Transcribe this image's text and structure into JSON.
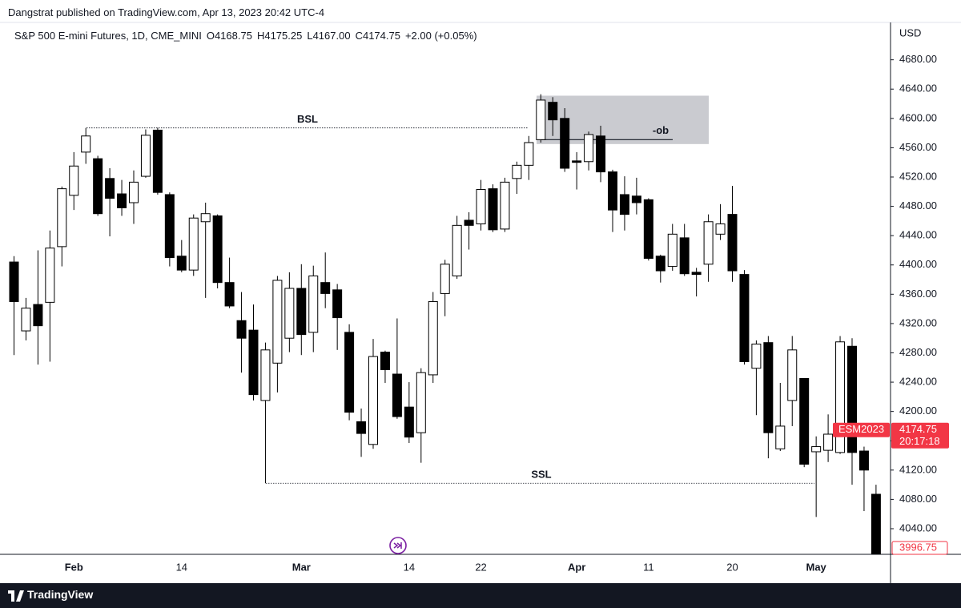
{
  "header": {
    "published": "Dangstrat published on TradingView.com, Apr 13, 2023 20:42 UTC-4"
  },
  "footer": {
    "brand": "TradingView"
  },
  "chart_data": {
    "type": "candlestick",
    "title": "S&P 500 E-mini Futures, 1D, CME_MINI",
    "ohlc_legend": [
      "O4168.75",
      "H4175.25",
      "L4167.00",
      "C4174.75",
      "+2.00 (+0.05%)"
    ],
    "currency": "USD",
    "categories": [
      null,
      null,
      null,
      null,
      null,
      "Feb",
      null,
      null,
      null,
      null,
      null,
      null,
      null,
      null,
      "14",
      null,
      null,
      null,
      null,
      null,
      null,
      null,
      null,
      null,
      "Mar",
      null,
      null,
      null,
      null,
      null,
      null,
      null,
      null,
      "14",
      null,
      null,
      null,
      null,
      null,
      "22",
      null,
      null,
      null,
      null,
      null,
      null,
      null,
      "Apr",
      null,
      null,
      null,
      null,
      null,
      "11",
      null,
      null,
      null,
      null,
      null,
      null,
      "20",
      null,
      null,
      null,
      null,
      null,
      null,
      "May",
      null,
      null,
      null,
      null,
      null
    ],
    "open": [
      4404,
      4310,
      4346,
      4349,
      4425,
      4495,
      4554,
      4545,
      4518,
      4497,
      4485,
      4521,
      4584,
      4496,
      4412,
      4393,
      4459,
      4467,
      4376,
      4324,
      4311,
      4215,
      4266,
      4300,
      4368,
      4308,
      4376,
      4366,
      4308,
      4186,
      4155,
      4281,
      4251,
      4206,
      4171,
      4250,
      4361,
      4385,
      4461,
      4456,
      4504,
      4449,
      4518,
      4536,
      4571,
      4622,
      4600,
      4542,
      4541,
      4576,
      4527,
      4496,
      4494,
      4489,
      4412,
      4398,
      4437,
      4390,
      4401,
      4442,
      4469,
      4387,
      4259,
      4294,
      4149,
      4215,
      4245,
      4145,
      4147,
      4144,
      4289,
      4146,
      4087
    ],
    "high": [
      4412,
      4355,
      4420,
      4447,
      4507,
      4554,
      4587,
      4549,
      4532,
      4516,
      4529,
      4585,
      4587,
      4499,
      4434,
      4469,
      4485,
      4469,
      4410,
      4363,
      4346,
      4294,
      4385,
      4390,
      4401,
      4399,
      4417,
      4374,
      4319,
      4204,
      4299,
      4283,
      4327,
      4240,
      4259,
      4363,
      4407,
      4467,
      4472,
      4516,
      4510,
      4519,
      4541,
      4576,
      4633,
      4629,
      4614,
      4554,
      4582,
      4590,
      4530,
      4521,
      4519,
      4491,
      4414,
      4456,
      4456,
      4396,
      4469,
      4483,
      4508,
      4393,
      4297,
      4303,
      4239,
      4303,
      4245,
      4166,
      4196,
      4303,
      4300,
      4152,
      4100
    ],
    "low": [
      4277,
      4297,
      4264,
      4268,
      4398,
      4475,
      4538,
      4467,
      4439,
      4467,
      4456,
      4519,
      4496,
      4398,
      4390,
      4385,
      4355,
      4368,
      4341,
      4253,
      4215,
      4102,
      4226,
      4281,
      4277,
      4281,
      4341,
      4284,
      4188,
      4138,
      4149,
      4239,
      4190,
      4157,
      4130,
      4239,
      4330,
      4381,
      4421,
      4447,
      4445,
      4445,
      4497,
      4516,
      4567,
      4576,
      4527,
      4503,
      4529,
      4513,
      4445,
      4447,
      4469,
      4406,
      4376,
      4392,
      4385,
      4357,
      4377,
      4434,
      4377,
      4264,
      4195,
      4136,
      4146,
      4180,
      4124,
      4056,
      4131,
      4142,
      4100,
      4064,
      3990
    ],
    "close": [
      4350,
      4341,
      4317,
      4423,
      4504,
      4535,
      4576,
      4470,
      4491,
      4478,
      4513,
      4577,
      4499,
      4410,
      4393,
      4464,
      4470,
      4376,
      4344,
      4300,
      4223,
      4284,
      4379,
      4368,
      4305,
      4385,
      4361,
      4328,
      4199,
      4170,
      4275,
      4257,
      4193,
      4165,
      4253,
      4350,
      4401,
      4454,
      4454,
      4503,
      4448,
      4513,
      4536,
      4567,
      4625,
      4598,
      4532,
      4540,
      4578,
      4527,
      4475,
      4469,
      4485,
      4409,
      4392,
      4442,
      4388,
      4387,
      4459,
      4456,
      4392,
      4268,
      4292,
      4171,
      4180,
      4284,
      4128,
      4152,
      4169,
      4295,
      4144,
      4120,
      3996.75
    ],
    "up_color": "#ffffff",
    "down_color": "#000000",
    "wick_color": "#000000",
    "ylim": [
      4005,
      4731
    ],
    "yticks": [
      {
        "value": 4040,
        "label": "4040.00"
      },
      {
        "value": 4080,
        "label": "4080.00"
      },
      {
        "value": 4120,
        "label": "4120.00"
      },
      {
        "value": 4160,
        "label": "4160.00"
      },
      {
        "value": 4200,
        "label": "4200.00"
      },
      {
        "value": 4240,
        "label": "4240.00"
      },
      {
        "value": 4280,
        "label": "4280.00"
      },
      {
        "value": 4320,
        "label": "4320.00"
      },
      {
        "value": 4360,
        "label": "4360.00"
      },
      {
        "value": 4400,
        "label": "4400.00"
      },
      {
        "value": 4440,
        "label": "4440.00"
      },
      {
        "value": 4480,
        "label": "4480.00"
      },
      {
        "value": 4520,
        "label": "4520.00"
      },
      {
        "value": 4560,
        "label": "4560.00"
      },
      {
        "value": 4600,
        "label": "4600.00"
      },
      {
        "value": 4640,
        "label": "4640.00"
      },
      {
        "value": 4680,
        "label": "4680.00"
      }
    ],
    "grid": false,
    "annotations": [
      {
        "text": "BSL",
        "value": 4587
      },
      {
        "text": "SSL",
        "value": 4102
      },
      {
        "text": "-ob",
        "value": 4571,
        "zone": [
          4565,
          4631
        ]
      }
    ],
    "last_price": {
      "symbol": "ESM2023",
      "value": 4174.75,
      "countdown": "20:17:18",
      "color": "#f23645"
    },
    "low_marker": {
      "value": 3996.75,
      "color": "#f23645"
    }
  }
}
